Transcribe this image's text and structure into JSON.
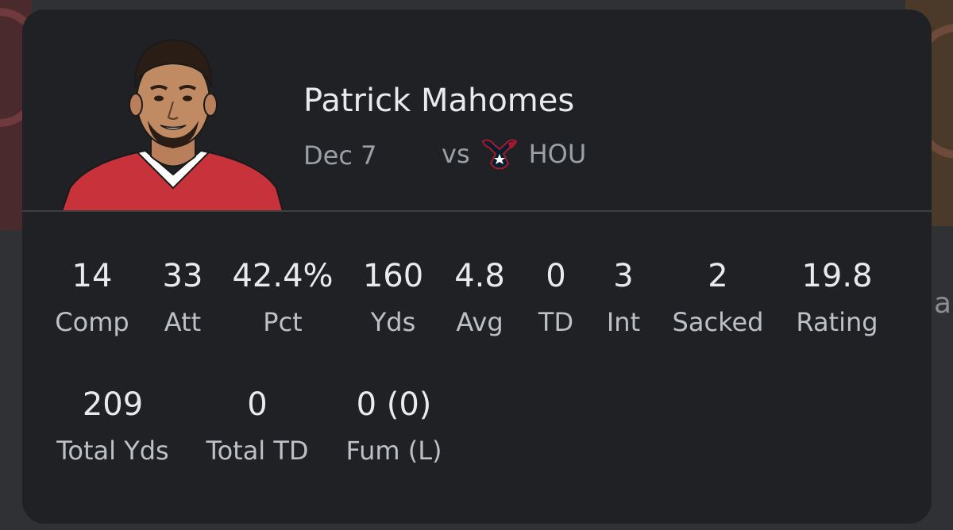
{
  "player": {
    "name": "Patrick Mahomes"
  },
  "game": {
    "date": "Dec 7",
    "vs": "vs",
    "opponent": "HOU"
  },
  "stats_row1": [
    {
      "value": "14",
      "label": "Comp"
    },
    {
      "value": "33",
      "label": "Att"
    },
    {
      "value": "42.4%",
      "label": "Pct"
    },
    {
      "value": "160",
      "label": "Yds"
    },
    {
      "value": "4.8",
      "label": "Avg"
    },
    {
      "value": "0",
      "label": "TD"
    },
    {
      "value": "3",
      "label": "Int"
    },
    {
      "value": "2",
      "label": "Sacked"
    },
    {
      "value": "19.8",
      "label": "Rating"
    }
  ],
  "stats_row2": [
    {
      "value": "209",
      "label": "Total Yds"
    },
    {
      "value": "0",
      "label": "Total TD"
    },
    {
      "value": "0 (0)",
      "label": "Fum (L)"
    }
  ],
  "colors": {
    "card_bg": "#202124",
    "page_bg": "#303134",
    "jersey_red": "#c8323b",
    "texans_navy": "#03202f",
    "texans_red": "#a71930"
  },
  "icons": {
    "avatar": "player-avatar-illustration",
    "team_logo": "houston-texans-logo"
  }
}
